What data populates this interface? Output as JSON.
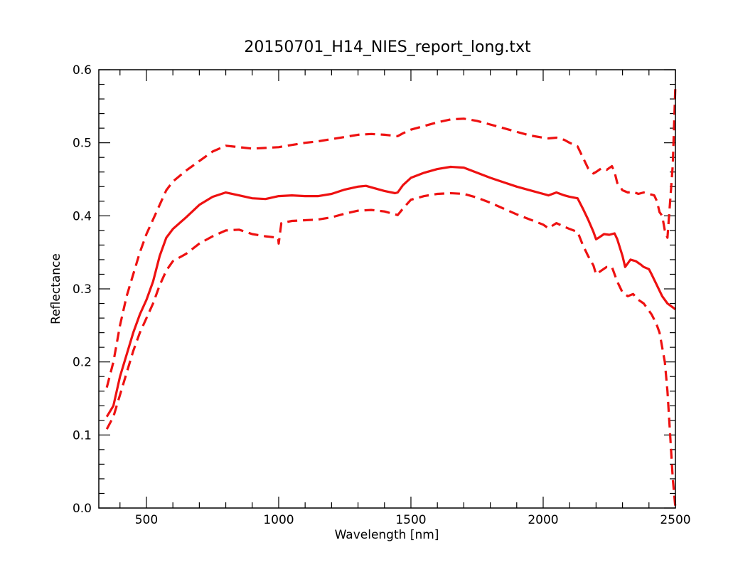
{
  "chart_data": {
    "type": "line",
    "title": "20150701_H14_NIES_report_long.txt",
    "xlabel": "Wavelength [nm]",
    "ylabel": "Reflectance",
    "xlim": [
      320,
      2500
    ],
    "ylim": [
      0.0,
      0.6
    ],
    "x_ticks": [
      500,
      1000,
      1500,
      2000,
      2500
    ],
    "x_tick_labels": [
      "500",
      "1000",
      "1500",
      "2000",
      "2500"
    ],
    "y_ticks": [
      0.0,
      0.1,
      0.2,
      0.3,
      0.4,
      0.5,
      0.6
    ],
    "y_tick_labels": [
      "0.0",
      "0.1",
      "0.2",
      "0.3",
      "0.4",
      "0.5",
      "0.6"
    ],
    "grid": false,
    "line_color": "#ee1111",
    "series": [
      {
        "style": "solid",
        "x": [
          350,
          375,
          400,
          425,
          450,
          475,
          500,
          525,
          550,
          575,
          600,
          650,
          700,
          750,
          800,
          850,
          900,
          950,
          1000,
          1050,
          1100,
          1150,
          1200,
          1250,
          1300,
          1330,
          1360,
          1400,
          1440,
          1450,
          1470,
          1500,
          1550,
          1600,
          1650,
          1700,
          1750,
          1800,
          1850,
          1900,
          1950,
          2000,
          2020,
          2050,
          2080,
          2100,
          2130,
          2150,
          2170,
          2190,
          2200,
          2210,
          2230,
          2250,
          2270,
          2280,
          2300,
          2310,
          2330,
          2350,
          2370,
          2380,
          2400,
          2410,
          2430,
          2450,
          2470,
          2500
        ],
        "y": [
          0.125,
          0.14,
          0.18,
          0.21,
          0.24,
          0.265,
          0.285,
          0.31,
          0.345,
          0.37,
          0.382,
          0.398,
          0.415,
          0.426,
          0.432,
          0.428,
          0.424,
          0.423,
          0.427,
          0.428,
          0.427,
          0.427,
          0.43,
          0.436,
          0.44,
          0.441,
          0.438,
          0.434,
          0.431,
          0.432,
          0.442,
          0.452,
          0.459,
          0.464,
          0.467,
          0.466,
          0.459,
          0.452,
          0.446,
          0.44,
          0.435,
          0.43,
          0.428,
          0.432,
          0.428,
          0.426,
          0.424,
          0.41,
          0.395,
          0.378,
          0.368,
          0.37,
          0.375,
          0.374,
          0.376,
          0.368,
          0.345,
          0.33,
          0.34,
          0.338,
          0.333,
          0.33,
          0.327,
          0.32,
          0.305,
          0.29,
          0.28,
          0.272
        ]
      },
      {
        "style": "dashed",
        "x": [
          350,
          375,
          400,
          425,
          450,
          475,
          500,
          525,
          550,
          575,
          600,
          650,
          700,
          750,
          800,
          850,
          900,
          950,
          1000,
          1050,
          1100,
          1150,
          1200,
          1250,
          1300,
          1350,
          1400,
          1450,
          1470,
          1500,
          1550,
          1600,
          1650,
          1700,
          1750,
          1800,
          1850,
          1900,
          1950,
          2000,
          2020,
          2050,
          2080,
          2100,
          2130,
          2150,
          2170,
          2190,
          2200,
          2220,
          2240,
          2260,
          2270,
          2280,
          2300,
          2320,
          2340,
          2360,
          2380,
          2400,
          2420,
          2430,
          2440,
          2450,
          2460,
          2470,
          2480,
          2490,
          2500
        ],
        "y": [
          0.165,
          0.2,
          0.25,
          0.29,
          0.32,
          0.35,
          0.375,
          0.395,
          0.415,
          0.435,
          0.447,
          0.462,
          0.475,
          0.488,
          0.496,
          0.494,
          0.492,
          0.493,
          0.494,
          0.497,
          0.5,
          0.502,
          0.505,
          0.508,
          0.511,
          0.512,
          0.511,
          0.509,
          0.513,
          0.518,
          0.523,
          0.528,
          0.532,
          0.533,
          0.53,
          0.525,
          0.52,
          0.515,
          0.51,
          0.507,
          0.506,
          0.507,
          0.504,
          0.5,
          0.495,
          0.48,
          0.465,
          0.458,
          0.46,
          0.465,
          0.463,
          0.468,
          0.46,
          0.445,
          0.435,
          0.432,
          0.433,
          0.43,
          0.432,
          0.43,
          0.428,
          0.42,
          0.405,
          0.4,
          0.38,
          0.37,
          0.42,
          0.47,
          0.58
        ]
      },
      {
        "style": "dashed",
        "x": [
          350,
          375,
          400,
          425,
          450,
          475,
          500,
          525,
          550,
          575,
          600,
          650,
          700,
          750,
          800,
          850,
          900,
          950,
          998,
          1000,
          1010,
          1050,
          1100,
          1150,
          1200,
          1250,
          1300,
          1350,
          1400,
          1450,
          1470,
          1500,
          1550,
          1600,
          1650,
          1700,
          1750,
          1800,
          1850,
          1900,
          1950,
          2000,
          2020,
          2050,
          2080,
          2100,
          2130,
          2150,
          2170,
          2190,
          2200,
          2220,
          2240,
          2260,
          2280,
          2300,
          2320,
          2340,
          2360,
          2380,
          2400,
          2410,
          2420,
          2430,
          2440,
          2450,
          2460,
          2470,
          2480,
          2490,
          2500
        ],
        "y": [
          0.108,
          0.125,
          0.155,
          0.185,
          0.215,
          0.24,
          0.26,
          0.28,
          0.305,
          0.325,
          0.338,
          0.348,
          0.362,
          0.372,
          0.38,
          0.381,
          0.375,
          0.372,
          0.37,
          0.362,
          0.39,
          0.393,
          0.394,
          0.395,
          0.398,
          0.403,
          0.407,
          0.408,
          0.406,
          0.401,
          0.41,
          0.422,
          0.427,
          0.43,
          0.431,
          0.43,
          0.425,
          0.418,
          0.41,
          0.402,
          0.395,
          0.388,
          0.383,
          0.39,
          0.385,
          0.382,
          0.378,
          0.36,
          0.345,
          0.332,
          0.32,
          0.325,
          0.33,
          0.33,
          0.31,
          0.295,
          0.29,
          0.293,
          0.285,
          0.28,
          0.27,
          0.265,
          0.258,
          0.25,
          0.24,
          0.22,
          0.2,
          0.16,
          0.1,
          0.04,
          0.0
        ]
      }
    ]
  }
}
